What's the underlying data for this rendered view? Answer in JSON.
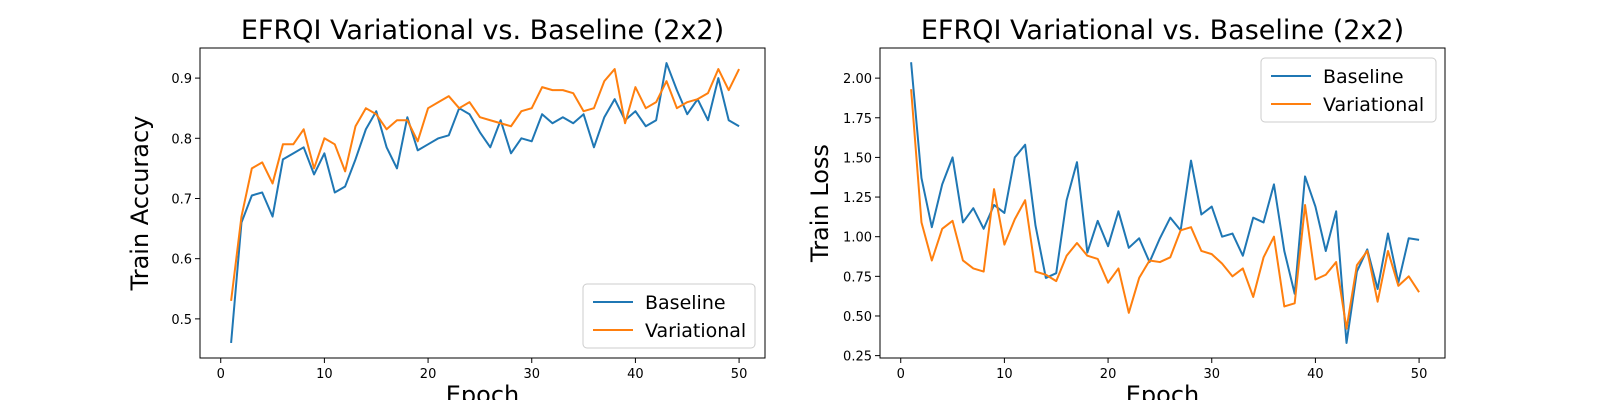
{
  "chart_data": [
    {
      "type": "line",
      "title": "EFRQI Variational vs. Baseline (2x2)",
      "xlabel": "Epoch",
      "ylabel": "Train Accuracy",
      "xlim": [
        -2,
        52.5
      ],
      "ylim": [
        0.435,
        0.95
      ],
      "xticks": [
        0,
        10,
        20,
        30,
        40,
        50
      ],
      "yticks": [
        0.5,
        0.6,
        0.7,
        0.8,
        0.9
      ],
      "ytick_labels": [
        "0.5",
        "0.6",
        "0.7",
        "0.8",
        "0.9"
      ],
      "legend_position": "lower-right",
      "grid": false,
      "series": [
        {
          "name": "Baseline",
          "color": "#1f77b4",
          "x": [
            1,
            2,
            3,
            4,
            5,
            6,
            7,
            8,
            9,
            10,
            11,
            12,
            13,
            14,
            15,
            16,
            17,
            18,
            19,
            20,
            21,
            22,
            23,
            24,
            25,
            26,
            27,
            28,
            29,
            30,
            31,
            32,
            33,
            34,
            35,
            36,
            37,
            38,
            39,
            40,
            41,
            42,
            43,
            44,
            45,
            46,
            47,
            48,
            49,
            50
          ],
          "values": [
            0.46,
            0.66,
            0.705,
            0.71,
            0.67,
            0.765,
            0.775,
            0.785,
            0.74,
            0.775,
            0.71,
            0.72,
            0.765,
            0.815,
            0.845,
            0.785,
            0.75,
            0.835,
            0.78,
            0.79,
            0.8,
            0.805,
            0.85,
            0.84,
            0.81,
            0.785,
            0.83,
            0.775,
            0.8,
            0.795,
            0.84,
            0.825,
            0.835,
            0.825,
            0.84,
            0.785,
            0.835,
            0.865,
            0.83,
            0.845,
            0.82,
            0.83,
            0.925,
            0.88,
            0.84,
            0.865,
            0.83,
            0.9,
            0.83,
            0.82
          ]
        },
        {
          "name": "Variational",
          "color": "#ff7f0e",
          "x": [
            1,
            2,
            3,
            4,
            5,
            6,
            7,
            8,
            9,
            10,
            11,
            12,
            13,
            14,
            15,
            16,
            17,
            18,
            19,
            20,
            21,
            22,
            23,
            24,
            25,
            26,
            27,
            28,
            29,
            30,
            31,
            32,
            33,
            34,
            35,
            36,
            37,
            38,
            39,
            40,
            41,
            42,
            43,
            44,
            45,
            46,
            47,
            48,
            49,
            50
          ],
          "values": [
            0.53,
            0.67,
            0.75,
            0.76,
            0.725,
            0.79,
            0.79,
            0.815,
            0.75,
            0.8,
            0.79,
            0.745,
            0.82,
            0.85,
            0.84,
            0.815,
            0.83,
            0.83,
            0.795,
            0.85,
            0.86,
            0.87,
            0.85,
            0.86,
            0.835,
            0.83,
            0.825,
            0.82,
            0.845,
            0.85,
            0.885,
            0.88,
            0.88,
            0.875,
            0.845,
            0.85,
            0.895,
            0.915,
            0.825,
            0.885,
            0.85,
            0.86,
            0.895,
            0.85,
            0.86,
            0.865,
            0.875,
            0.915,
            0.88,
            0.915
          ]
        }
      ]
    },
    {
      "type": "line",
      "title": "EFRQI Variational vs. Baseline (2x2)",
      "xlabel": "Epoch",
      "ylabel": "Train Loss",
      "xlim": [
        -2,
        52.5
      ],
      "ylim": [
        0.235,
        2.19
      ],
      "xticks": [
        0,
        10,
        20,
        30,
        40,
        50
      ],
      "yticks": [
        0.25,
        0.5,
        0.75,
        1.0,
        1.25,
        1.5,
        1.75,
        2.0
      ],
      "ytick_labels": [
        "0.25",
        "0.50",
        "0.75",
        "1.00",
        "1.25",
        "1.50",
        "1.75",
        "2.00"
      ],
      "legend_position": "upper-right",
      "grid": false,
      "series": [
        {
          "name": "Baseline",
          "color": "#1f77b4",
          "x": [
            1,
            2,
            3,
            4,
            5,
            6,
            7,
            8,
            9,
            10,
            11,
            12,
            13,
            14,
            15,
            16,
            17,
            18,
            19,
            20,
            21,
            22,
            23,
            24,
            25,
            26,
            27,
            28,
            29,
            30,
            31,
            32,
            33,
            34,
            35,
            36,
            37,
            38,
            39,
            40,
            41,
            42,
            43,
            44,
            45,
            46,
            47,
            48,
            49,
            50
          ],
          "values": [
            2.1,
            1.37,
            1.06,
            1.33,
            1.5,
            1.09,
            1.18,
            1.05,
            1.2,
            1.15,
            1.5,
            1.58,
            1.07,
            0.74,
            0.77,
            1.23,
            1.47,
            0.9,
            1.1,
            0.94,
            1.16,
            0.93,
            0.99,
            0.84,
            0.99,
            1.12,
            1.04,
            1.48,
            1.14,
            1.19,
            1.0,
            1.02,
            0.88,
            1.12,
            1.09,
            1.33,
            0.91,
            0.64,
            1.38,
            1.19,
            0.91,
            1.16,
            0.33,
            0.78,
            0.92,
            0.67,
            1.02,
            0.71,
            0.99,
            0.98
          ]
        },
        {
          "name": "Variational",
          "color": "#ff7f0e",
          "x": [
            1,
            2,
            3,
            4,
            5,
            6,
            7,
            8,
            9,
            10,
            11,
            12,
            13,
            14,
            15,
            16,
            17,
            18,
            19,
            20,
            21,
            22,
            23,
            24,
            25,
            26,
            27,
            28,
            29,
            30,
            31,
            32,
            33,
            34,
            35,
            36,
            37,
            38,
            39,
            40,
            41,
            42,
            43,
            44,
            45,
            46,
            47,
            48,
            49,
            50
          ],
          "values": [
            1.93,
            1.09,
            0.85,
            1.05,
            1.1,
            0.85,
            0.8,
            0.78,
            1.3,
            0.95,
            1.11,
            1.23,
            0.78,
            0.76,
            0.72,
            0.88,
            0.96,
            0.88,
            0.86,
            0.71,
            0.8,
            0.52,
            0.74,
            0.85,
            0.84,
            0.87,
            1.04,
            1.06,
            0.91,
            0.89,
            0.83,
            0.75,
            0.8,
            0.62,
            0.87,
            1.0,
            0.56,
            0.58,
            1.2,
            0.73,
            0.76,
            0.84,
            0.42,
            0.82,
            0.91,
            0.59,
            0.91,
            0.69,
            0.75,
            0.65
          ]
        }
      ]
    }
  ]
}
